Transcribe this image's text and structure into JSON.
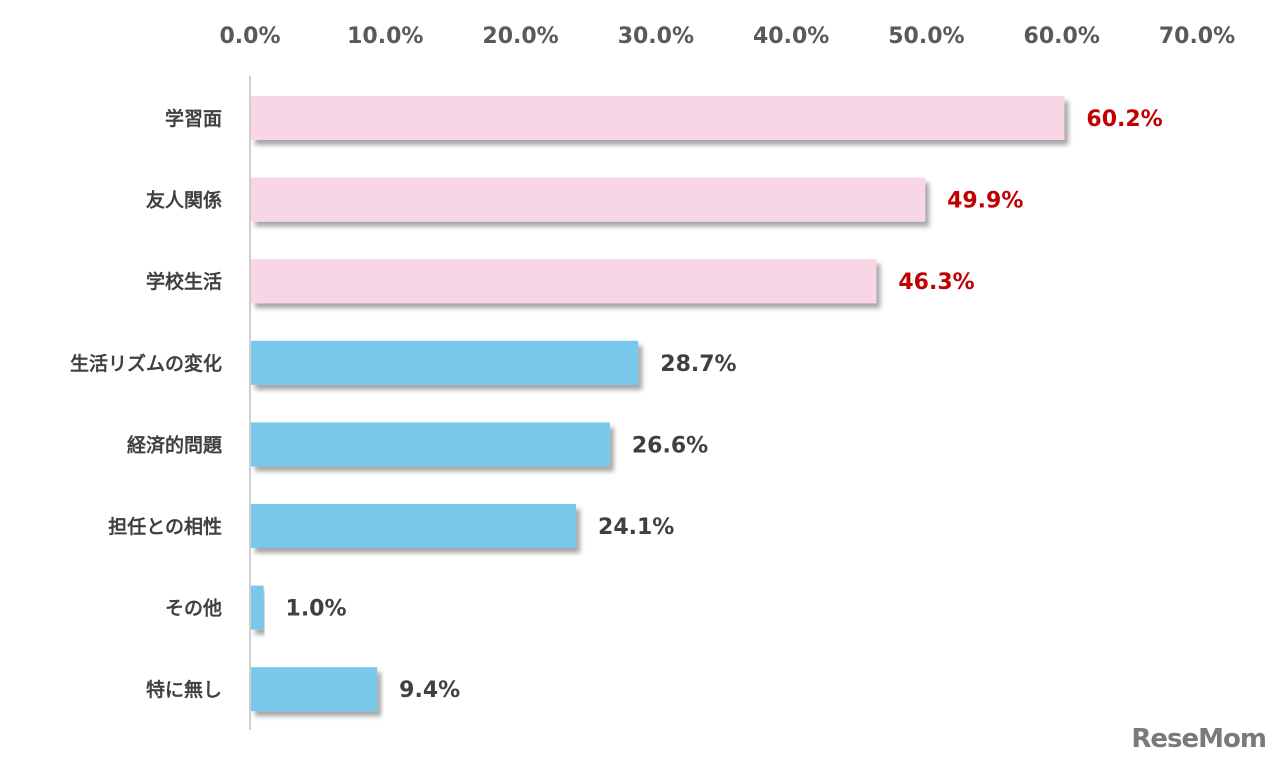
{
  "chart_data": {
    "type": "bar",
    "orientation": "horizontal",
    "categories": [
      "学習面",
      "友人関係",
      "学校生活",
      "生活リズムの変化",
      "経済的問題",
      "担任との相性",
      "その他",
      "特に無し"
    ],
    "values": [
      60.2,
      49.9,
      46.3,
      28.7,
      26.6,
      24.1,
      1.0,
      9.4
    ],
    "value_labels": [
      "60.2%",
      "49.9%",
      "46.3%",
      "28.7%",
      "26.6%",
      "24.1%",
      "1.0%",
      "9.4%"
    ],
    "xlim": [
      0,
      70
    ],
    "x_ticks": [
      "0.0%",
      "10.0%",
      "20.0%",
      "30.0%",
      "40.0%",
      "50.0%",
      "60.0%",
      "70.0%"
    ],
    "x_axis_position": "top",
    "grid": false,
    "highlight_count": 3,
    "colors": {
      "highlight_bar": "#f8d6e6",
      "normal_bar": "#77c8ea",
      "highlight_label": "#c00000",
      "normal_label": "#404040",
      "axis": "#d0d0d0"
    }
  },
  "logo": "ReseMom"
}
